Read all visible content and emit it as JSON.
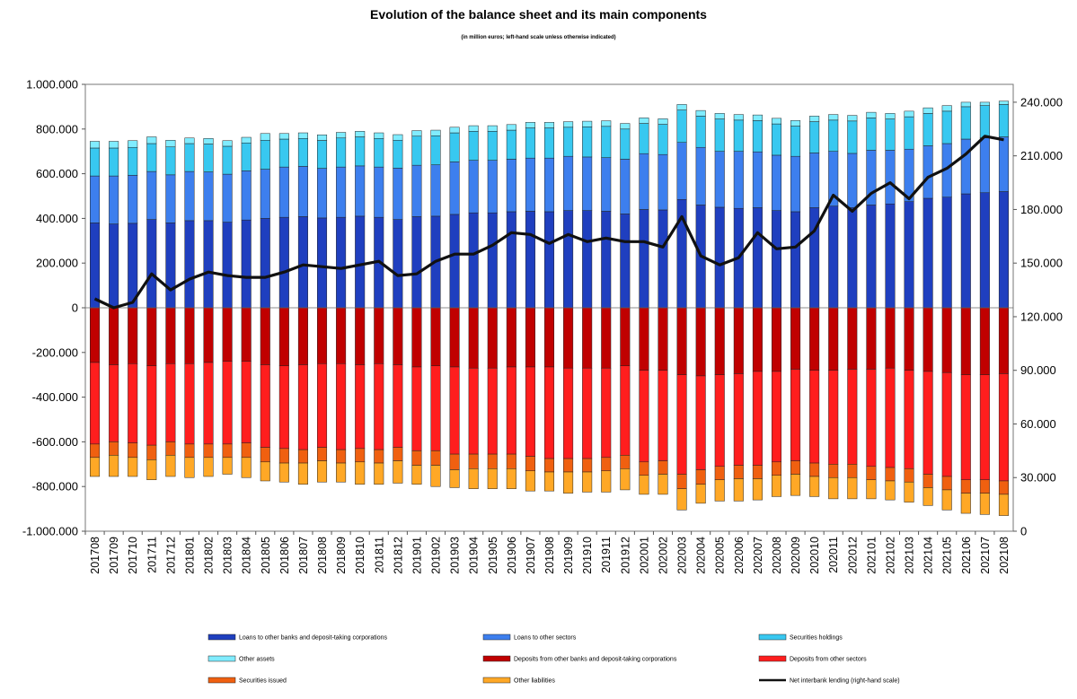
{
  "chart_data": {
    "type": "bar",
    "title": "Evolution of the balance sheet and its main components",
    "subtitle": "(in million euros; left-hand scale unless otherwise indicated)",
    "stacked": true,
    "left_axis": {
      "range": [
        -1000000,
        1000000
      ],
      "ticks": [
        -1000000,
        -800000,
        -600000,
        -400000,
        -200000,
        0,
        200000,
        400000,
        600000,
        800000,
        1000000
      ],
      "tick_labels": [
        "-1.000.000",
        "-800.000",
        "-600.000",
        "-400.000",
        "-200.000",
        "0",
        "200.000",
        "400.000",
        "600.000",
        "800.000",
        "1.000.000"
      ]
    },
    "right_axis": {
      "range": [
        0,
        250000
      ],
      "ticks": [
        0,
        30000,
        60000,
        90000,
        120000,
        150000,
        180000,
        210000,
        240000
      ],
      "tick_labels": [
        "0",
        "30.000",
        "60.000",
        "90.000",
        "120.000",
        "150.000",
        "180.000",
        "210.000",
        "240.000"
      ]
    },
    "categories": [
      "201708",
      "201709",
      "201710",
      "201711",
      "201712",
      "201801",
      "201802",
      "201803",
      "201804",
      "201805",
      "201806",
      "201807",
      "201808",
      "201809",
      "201810",
      "201811",
      "201812",
      "201901",
      "201902",
      "201903",
      "201904",
      "201905",
      "201906",
      "201907",
      "201908",
      "201909",
      "201910",
      "201911",
      "201912",
      "202001",
      "202002",
      "202003",
      "202004",
      "202005",
      "202006",
      "202007",
      "202008",
      "202009",
      "202010",
      "202011",
      "202012",
      "202101",
      "202102",
      "202103",
      "202104",
      "202105",
      "202106",
      "202107",
      "202108"
    ],
    "series": [
      {
        "name": "Loans to other banks and deposit-taking corporations",
        "color": "#1f3fbf",
        "side": "positive",
        "values": [
          380000,
          375000,
          378000,
          395000,
          380000,
          390000,
          390000,
          383000,
          393000,
          400000,
          405000,
          408000,
          402000,
          405000,
          410000,
          405000,
          395000,
          408000,
          410000,
          418000,
          425000,
          425000,
          430000,
          432000,
          430000,
          435000,
          435000,
          432000,
          420000,
          440000,
          438000,
          485000,
          460000,
          450000,
          445000,
          448000,
          435000,
          430000,
          448000,
          455000,
          448000,
          460000,
          465000,
          475000,
          490000,
          495000,
          510000,
          515000,
          520000
        ]
      },
      {
        "name": "Loans to other sectors",
        "color": "#3d7fee",
        "side": "positive",
        "values": [
          210000,
          215000,
          215000,
          215000,
          215000,
          220000,
          218000,
          215000,
          220000,
          220000,
          225000,
          225000,
          222000,
          225000,
          225000,
          225000,
          230000,
          230000,
          230000,
          235000,
          235000,
          235000,
          235000,
          238000,
          240000,
          243000,
          240000,
          240000,
          245000,
          250000,
          248000,
          255000,
          258000,
          250000,
          255000,
          250000,
          248000,
          248000,
          245000,
          245000,
          243000,
          245000,
          240000,
          235000,
          235000,
          240000,
          245000,
          245000,
          245000
        ]
      },
      {
        "name": "Securities holdings",
        "color": "#38c8f0",
        "side": "positive",
        "values": [
          125000,
          125000,
          125000,
          125000,
          125000,
          125000,
          125000,
          125000,
          125000,
          130000,
          125000,
          125000,
          125000,
          130000,
          130000,
          128000,
          125000,
          130000,
          130000,
          130000,
          130000,
          130000,
          130000,
          135000,
          135000,
          130000,
          135000,
          140000,
          135000,
          135000,
          135000,
          145000,
          140000,
          145000,
          140000,
          140000,
          140000,
          135000,
          140000,
          140000,
          145000,
          145000,
          140000,
          145000,
          145000,
          145000,
          145000,
          145000,
          145000
        ]
      },
      {
        "name": "Other assets",
        "color": "#80ecff",
        "side": "positive",
        "values": [
          30000,
          30000,
          30000,
          30000,
          30000,
          25000,
          25000,
          25000,
          25000,
          30000,
          25000,
          25000,
          25000,
          25000,
          25000,
          25000,
          25000,
          25000,
          25000,
          25000,
          25000,
          25000,
          25000,
          25000,
          25000,
          25000,
          25000,
          25000,
          25000,
          25000,
          25000,
          25000,
          25000,
          25000,
          25000,
          25000,
          25000,
          25000,
          25000,
          25000,
          25000,
          25000,
          25000,
          25000,
          25000,
          25000,
          20000,
          15000,
          15000
        ]
      },
      {
        "name": "Deposits from other banks and deposit-taking corporations",
        "color": "#c00000",
        "side": "negative",
        "values": [
          245000,
          255000,
          250000,
          260000,
          250000,
          250000,
          245000,
          240000,
          240000,
          255000,
          260000,
          255000,
          250000,
          250000,
          255000,
          250000,
          255000,
          265000,
          260000,
          265000,
          270000,
          270000,
          265000,
          265000,
          265000,
          270000,
          270000,
          270000,
          260000,
          280000,
          280000,
          300000,
          305000,
          300000,
          295000,
          285000,
          285000,
          275000,
          280000,
          280000,
          275000,
          275000,
          270000,
          280000,
          285000,
          290000,
          300000,
          300000,
          295000
        ]
      },
      {
        "name": "Deposits from other sectors",
        "color": "#ff1e1e",
        "side": "negative",
        "values": [
          365000,
          345000,
          355000,
          355000,
          350000,
          360000,
          365000,
          370000,
          365000,
          370000,
          370000,
          380000,
          375000,
          385000,
          375000,
          385000,
          370000,
          375000,
          380000,
          390000,
          385000,
          385000,
          390000,
          400000,
          410000,
          405000,
          405000,
          400000,
          400000,
          410000,
          405000,
          445000,
          420000,
          410000,
          410000,
          420000,
          405000,
          410000,
          415000,
          420000,
          425000,
          435000,
          445000,
          440000,
          460000,
          465000,
          470000,
          470000,
          480000
        ]
      },
      {
        "name": "Securities issued",
        "color": "#f06010",
        "side": "negative",
        "values": [
          60000,
          60000,
          65000,
          65000,
          60000,
          60000,
          60000,
          60000,
          65000,
          65000,
          65000,
          60000,
          60000,
          60000,
          60000,
          60000,
          60000,
          65000,
          65000,
          70000,
          65000,
          65000,
          65000,
          65000,
          60000,
          60000,
          60000,
          60000,
          60000,
          60000,
          60000,
          65000,
          65000,
          60000,
          60000,
          60000,
          60000,
          60000,
          60000,
          60000,
          60000,
          60000,
          60000,
          60000,
          60000,
          60000,
          60000,
          60000,
          60000
        ]
      },
      {
        "name": "Other liabilities",
        "color": "#ffa826",
        "side": "negative",
        "values": [
          85000,
          95000,
          85000,
          90000,
          95000,
          90000,
          85000,
          75000,
          90000,
          85000,
          85000,
          95000,
          95000,
          85000,
          100000,
          95000,
          100000,
          85000,
          95000,
          80000,
          90000,
          90000,
          90000,
          90000,
          85000,
          95000,
          90000,
          95000,
          95000,
          85000,
          90000,
          95000,
          85000,
          95000,
          100000,
          95000,
          95000,
          95000,
          90000,
          95000,
          95000,
          85000,
          85000,
          90000,
          80000,
          90000,
          90000,
          95000,
          95000
        ]
      }
    ],
    "line_series": {
      "name": "Net interbank lending (right-hand scale)",
      "color": "#111111",
      "axis": "right",
      "values": [
        130000,
        125000,
        128000,
        144000,
        135000,
        141000,
        145000,
        143000,
        142000,
        142000,
        145000,
        149000,
        148000,
        147000,
        149000,
        151000,
        143000,
        144000,
        151000,
        155000,
        155000,
        160000,
        167000,
        166000,
        161000,
        166000,
        162000,
        164000,
        162000,
        162000,
        159000,
        176000,
        154000,
        149000,
        153000,
        167000,
        158000,
        159000,
        168000,
        188000,
        179000,
        189000,
        195000,
        186000,
        198000,
        203000,
        211000,
        221000,
        219000
      ]
    },
    "legend": {
      "placement": "bottom",
      "labels": [
        "Loans to other banks and deposit-taking corporations",
        "Loans to other sectors",
        "Securities holdings",
        "Other assets",
        "Deposits from other banks and deposit-taking corporations",
        "Deposits from other sectors",
        "Securities issued",
        "Other liabilities",
        "Net interbank lending (right-hand scale)"
      ]
    },
    "grid": false
  }
}
